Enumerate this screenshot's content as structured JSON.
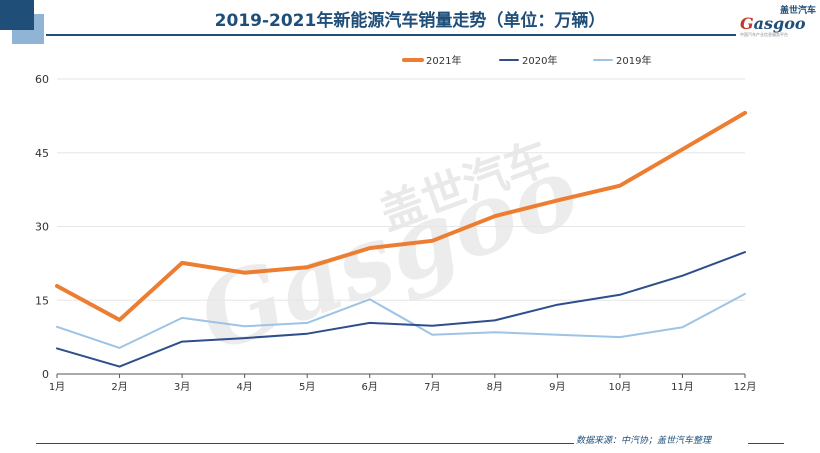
{
  "title": "2019-2021年新能源汽车销量走势（单位：万辆）",
  "logo": {
    "cn": "盖世汽车",
    "en_prefix": "G",
    "en_rest": "asgoo",
    "tagline": "中国汽车产业信息服务平台"
  },
  "watermark": {
    "cn": "盖世汽车",
    "en": "Gasgoo"
  },
  "source": "数据来源：中汽协；盖世汽车整理",
  "colors": {
    "title": "#1f4e79",
    "y2021": "#ed7d31",
    "y2020": "#2f4e8c",
    "y2019": "#9dc3e6",
    "grid": "#e6e6e6"
  },
  "chart_data": {
    "type": "line",
    "title": "2019-2021年新能源汽车销量走势（单位：万辆）",
    "xlabel": "",
    "ylabel": "",
    "categories": [
      "1月",
      "2月",
      "3月",
      "4月",
      "5月",
      "6月",
      "7月",
      "8月",
      "9月",
      "10月",
      "11月",
      "12月"
    ],
    "ylim": [
      0,
      60
    ],
    "yticks": [
      0,
      15,
      30,
      45,
      60
    ],
    "grid": "horizontal",
    "legend_position": "top-right",
    "series": [
      {
        "name": "2021年",
        "color": "#ed7d31",
        "width": 4,
        "values": [
          17.9,
          11.0,
          22.6,
          20.6,
          21.7,
          25.6,
          27.1,
          32.1,
          35.3,
          38.3,
          45.7,
          53.1
        ]
      },
      {
        "name": "2020年",
        "color": "#2f4e8c",
        "width": 2,
        "values": [
          5.2,
          1.5,
          6.6,
          7.3,
          8.2,
          10.4,
          9.8,
          10.9,
          14.1,
          16.1,
          20.0,
          24.8
        ]
      },
      {
        "name": "2019年",
        "color": "#9dc3e6",
        "width": 2,
        "values": [
          9.6,
          5.3,
          11.4,
          9.7,
          10.4,
          15.2,
          8.0,
          8.5,
          8.0,
          7.5,
          9.5,
          16.3
        ]
      }
    ]
  }
}
